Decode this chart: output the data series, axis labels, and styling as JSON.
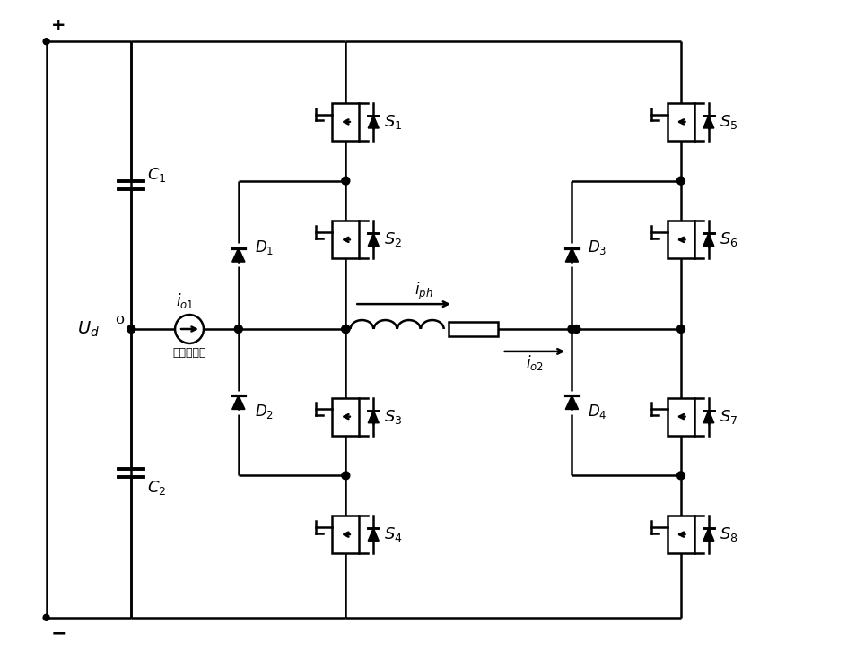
{
  "bg_color": "#ffffff",
  "lw": 1.8,
  "figsize": [
    9.63,
    7.35
  ],
  "dpi": 100
}
